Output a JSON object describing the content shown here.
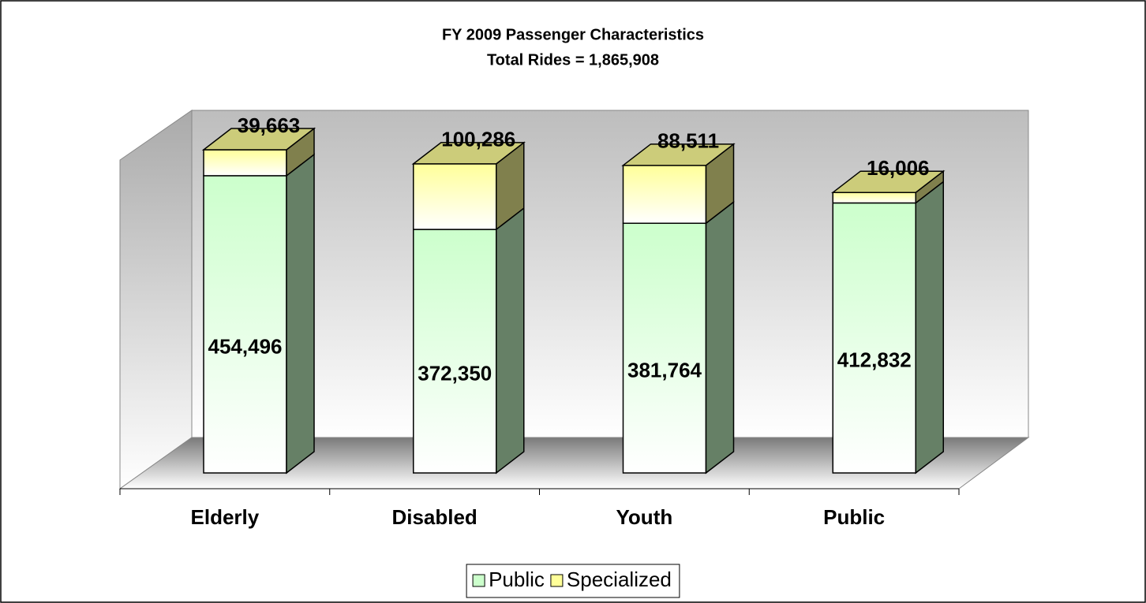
{
  "chart_data": {
    "type": "bar",
    "stacked": true,
    "title": "FY 2009 Passenger Characteristics",
    "subtitle": "Total Rides = 1,865,908",
    "categories": [
      "Elderly",
      "Disabled",
      "Youth",
      "Public"
    ],
    "series": [
      {
        "name": "Public",
        "color": "#ccffcc",
        "values": [
          454496,
          372350,
          381764,
          412832
        ],
        "value_labels": [
          "454,496",
          "372,350",
          "381,764",
          "412,832"
        ]
      },
      {
        "name": "Specialized",
        "color": "#ffff99",
        "values": [
          39663,
          100286,
          88511,
          16006
        ],
        "value_labels": [
          "39,663",
          "100,286",
          "88,511",
          "16,006"
        ]
      }
    ],
    "legend": "bottom"
  }
}
